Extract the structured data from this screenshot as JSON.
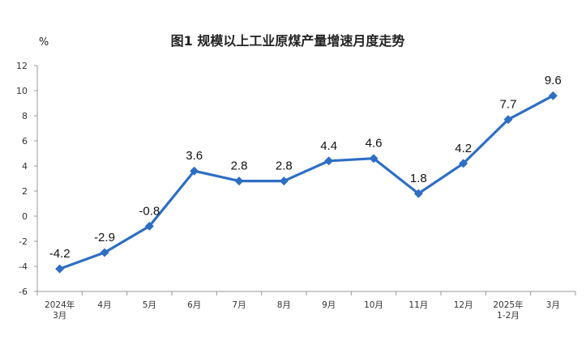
{
  "chart_data": {
    "type": "line",
    "title": "图1  规模以上工业原煤产量增速月度走势",
    "ylabel": "%",
    "xlabel": "",
    "ylim": [
      -6,
      12
    ],
    "yticks": [
      12,
      10,
      8,
      6,
      4,
      2,
      0,
      -2,
      -4,
      -6
    ],
    "grid": false,
    "categories": [
      [
        "2024年",
        "3月"
      ],
      [
        "4月"
      ],
      [
        "5月"
      ],
      [
        "6月"
      ],
      [
        "7月"
      ],
      [
        "8月"
      ],
      [
        "9月"
      ],
      [
        "10月"
      ],
      [
        "11月"
      ],
      [
        "12月"
      ],
      [
        "2025年",
        "1-2月"
      ],
      [
        "3月"
      ]
    ],
    "series": [
      {
        "values": [
          -4.2,
          -2.9,
          -0.8,
          3.6,
          2.8,
          2.8,
          4.4,
          4.6,
          1.8,
          4.2,
          7.7,
          9.6
        ],
        "data_labels": [
          "-4.2",
          "-2.9",
          "-0.8",
          "3.6",
          "2.8",
          "2.8",
          "4.4",
          "4.6",
          "1.8",
          "4.2",
          "7.7",
          "9.6"
        ],
        "color": "#2e6ec4",
        "marker": "diamond"
      }
    ]
  }
}
